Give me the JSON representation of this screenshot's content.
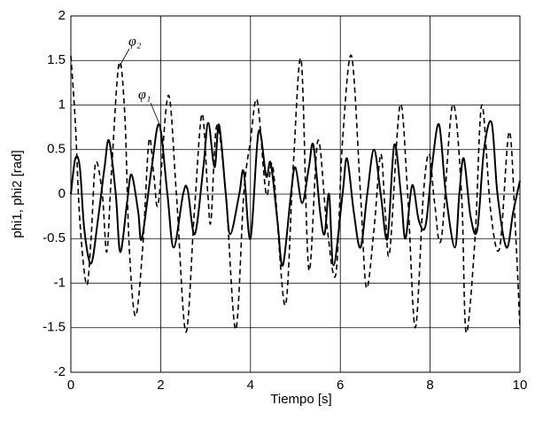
{
  "chart_data": {
    "type": "line",
    "x_label": "Tiempo [s]",
    "y_label": "phi1, phi2 [rad]",
    "xlim": [
      0,
      10
    ],
    "xticks": [
      0,
      2,
      4,
      6,
      8,
      10
    ],
    "ylim": [
      -2,
      2
    ],
    "yticks": [
      -2,
      -1.5,
      -1,
      -0.5,
      0,
      0.5,
      1,
      1.5,
      2
    ],
    "grid": true,
    "annotations": [
      "φ₂",
      "φ₁"
    ],
    "series": [
      {
        "color": "#000000",
        "dash": true,
        "x": [
          0,
          0.1,
          0.2,
          0.35,
          0.45,
          0.55,
          0.7,
          0.8,
          0.9,
          1.07,
          1.2,
          1.3,
          1.44,
          1.6,
          1.74,
          1.85,
          1.95,
          2.17,
          2.35,
          2.56,
          2.75,
          2.92,
          3.05,
          3.12,
          3.25,
          3.45,
          3.67,
          3.85,
          4.0,
          4.15,
          4.35,
          4.5,
          4.77,
          4.95,
          5.13,
          5.3,
          5.5,
          5.7,
          5.9,
          6.05,
          6.25,
          6.45,
          6.58,
          6.75,
          6.9,
          7.0,
          7.1,
          7.33,
          7.5,
          7.67,
          7.85,
          7.98,
          8.1,
          8.25,
          8.5,
          8.7,
          8.8,
          9.0,
          9.15,
          9.35,
          9.55,
          9.76,
          9.9,
          10
        ],
        "values": [
          1.55,
          0.8,
          -0.3,
          -1.02,
          -0.5,
          0.35,
          0.0,
          -0.65,
          0.2,
          1.46,
          0.9,
          -0.6,
          -1.37,
          -0.6,
          0.6,
          0.2,
          -0.1,
          1.11,
          0.0,
          -1.55,
          -0.2,
          0.9,
          0.0,
          -0.3,
          0.77,
          0.0,
          -1.52,
          0.0,
          0.6,
          1.05,
          0.0,
          0.3,
          -1.25,
          0.3,
          1.5,
          -0.85,
          0.6,
          -0.35,
          -0.9,
          0.6,
          1.55,
          0.0,
          -1.05,
          -0.4,
          0.45,
          -0.2,
          -0.65,
          1.0,
          0.0,
          -1.5,
          0.0,
          0.45,
          -0.1,
          -0.5,
          1.0,
          0.0,
          -1.55,
          -0.5,
          1.0,
          -0.2,
          -0.6,
          0.7,
          -0.4,
          -1.5
        ]
      },
      {
        "color": "#000000",
        "dash": false,
        "x": [
          0,
          0.1,
          0.2,
          0.3,
          0.45,
          0.6,
          0.75,
          0.85,
          1.0,
          1.1,
          1.25,
          1.35,
          1.5,
          1.58,
          1.8,
          1.97,
          2.15,
          2.29,
          2.5,
          2.6,
          2.76,
          2.95,
          3.06,
          3.2,
          3.3,
          3.45,
          3.55,
          3.75,
          3.85,
          4.0,
          4.18,
          4.35,
          4.45,
          4.6,
          4.72,
          4.9,
          5.0,
          5.15,
          5.3,
          5.4,
          5.55,
          5.65,
          5.75,
          5.85,
          6.05,
          6.15,
          6.3,
          6.45,
          6.6,
          6.75,
          6.9,
          7.05,
          7.2,
          7.35,
          7.45,
          7.6,
          7.75,
          7.9,
          8.05,
          8.2,
          8.35,
          8.55,
          8.65,
          8.75,
          8.9,
          9.05,
          9.2,
          9.37,
          9.5,
          9.7,
          9.85,
          10
        ],
        "values": [
          0.0,
          0.4,
          0.3,
          -0.4,
          -0.78,
          -0.3,
          0.3,
          0.6,
          0.0,
          -0.65,
          -0.1,
          0.22,
          -0.2,
          -0.5,
          0.3,
          0.78,
          0.0,
          -0.6,
          0.0,
          0.05,
          -0.45,
          0.3,
          0.8,
          0.3,
          0.78,
          0.0,
          -0.45,
          0.0,
          0.25,
          -0.5,
          0.7,
          0.2,
          0.35,
          -0.3,
          -0.8,
          0.0,
          0.3,
          -0.1,
          0.3,
          0.55,
          -0.2,
          -0.45,
          0.0,
          -0.8,
          0.0,
          0.4,
          -0.2,
          -0.6,
          0.0,
          0.5,
          0.0,
          -0.5,
          0.55,
          0.0,
          -0.5,
          0.1,
          -0.3,
          -0.35,
          0.35,
          0.78,
          0.0,
          -0.6,
          0.0,
          0.4,
          -0.25,
          -0.4,
          0.5,
          0.8,
          0.0,
          -0.6,
          -0.2,
          0.15
        ]
      }
    ]
  }
}
